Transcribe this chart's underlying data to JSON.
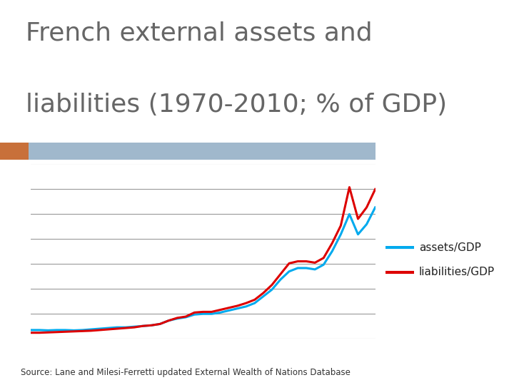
{
  "title_line1": "French external assets and",
  "title_line2": "liabilities (1970-2010; % of GDP)",
  "title_fontsize": 26,
  "title_color": "#666666",
  "background_color": "#ffffff",
  "plot_background": "#ffffff",
  "header_bar_color": "#a0b8cc",
  "header_accent_color": "#c8703a",
  "source_text": "Source: Lane and Milesi-Ferretti updated External Wealth of Nations Database",
  "legend_assets": "assets/GDP",
  "legend_liabilities": "liabilities/GDP",
  "assets_color": "#00aaee",
  "liabilities_color": "#dd0000",
  "years": [
    1970,
    1971,
    1972,
    1973,
    1974,
    1975,
    1976,
    1977,
    1978,
    1979,
    1980,
    1981,
    1982,
    1983,
    1984,
    1985,
    1986,
    1987,
    1988,
    1989,
    1990,
    1991,
    1992,
    1993,
    1994,
    1995,
    1996,
    1997,
    1998,
    1999,
    2000,
    2001,
    2002,
    2003,
    2004,
    2005,
    2006,
    2007,
    2008,
    2009,
    2010
  ],
  "assets": [
    13,
    13,
    12.5,
    13,
    13,
    12.5,
    13,
    14,
    15,
    16,
    17,
    17,
    18,
    19,
    20,
    22,
    27,
    30,
    32,
    36,
    37,
    37,
    39,
    42,
    45,
    48,
    53,
    63,
    73,
    88,
    100,
    105,
    105,
    103,
    110,
    130,
    155,
    185,
    155,
    170,
    195
  ],
  "liabilities": [
    9,
    9,
    9.5,
    10,
    10.5,
    11,
    11.5,
    12,
    13,
    14,
    15,
    16,
    17,
    19,
    20,
    22,
    27,
    31,
    33,
    39,
    40,
    40,
    43,
    46,
    49,
    53,
    58,
    68,
    80,
    96,
    112,
    115,
    115,
    113,
    120,
    142,
    168,
    225,
    178,
    195,
    222
  ],
  "ylim": [
    0,
    260
  ],
  "xlim": [
    1970,
    2010
  ],
  "line_width": 2.2,
  "grid_color": "#999999",
  "grid_linewidth": 0.8,
  "n_gridlines": 8
}
